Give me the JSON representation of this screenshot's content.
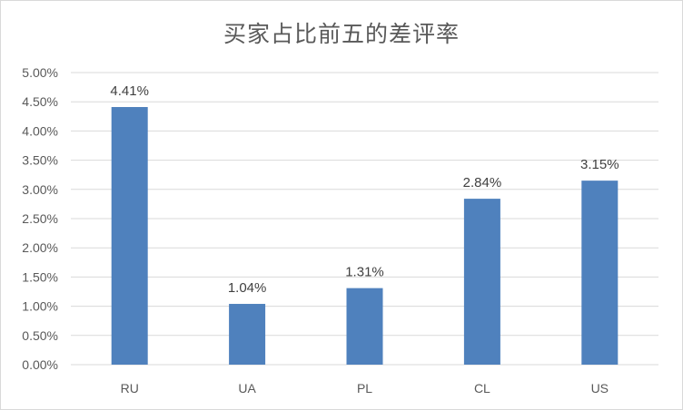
{
  "chart_data": {
    "type": "bar",
    "title": "买家占比前五的差评率",
    "categories": [
      "RU",
      "UA",
      "PL",
      "CL",
      "US"
    ],
    "values": [
      4.41,
      1.04,
      1.31,
      2.84,
      3.15
    ],
    "data_labels": [
      "4.41%",
      "1.04%",
      "1.31%",
      "2.84%",
      "3.15%"
    ],
    "ylim": [
      0,
      5
    ],
    "y_ticks": [
      "0.00%",
      "0.50%",
      "1.00%",
      "1.50%",
      "2.00%",
      "2.50%",
      "3.00%",
      "3.50%",
      "4.00%",
      "4.50%",
      "5.00%"
    ],
    "grid": true,
    "legend": "none",
    "bar_color": "#4f81bd",
    "grid_color": "#d9d9d9"
  }
}
